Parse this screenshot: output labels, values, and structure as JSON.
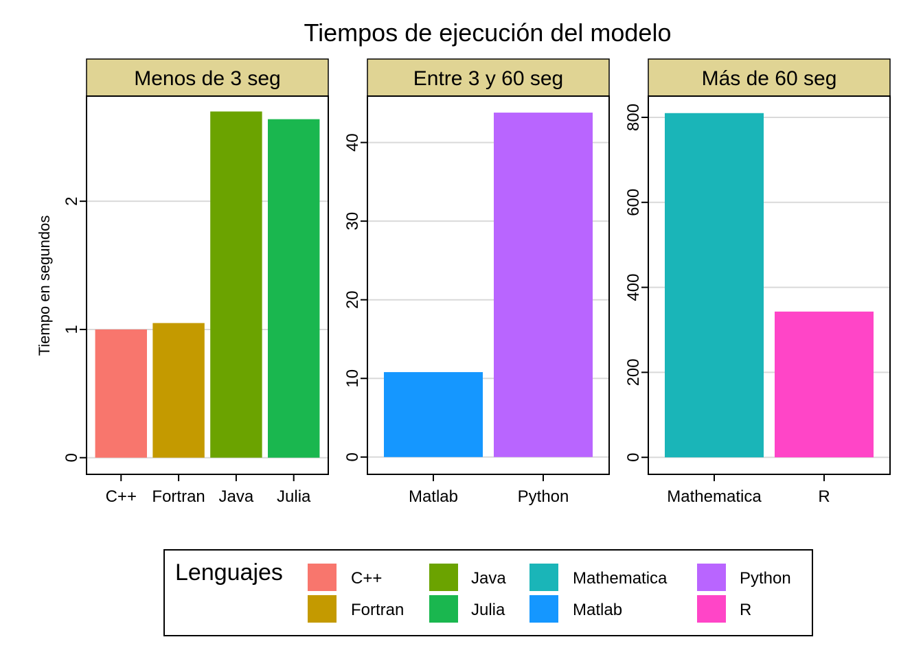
{
  "chart_data": {
    "type": "bar",
    "title": "Tiempos de ejecución del modelo",
    "ylabel": "Tiempo en segundos",
    "xlabel": "",
    "grid": "horizontal major gridlines",
    "panels": [
      {
        "strip": "Menos de 3 seg",
        "categories": [
          "C++",
          "Fortran",
          "Java",
          "Julia"
        ],
        "values": [
          1.0,
          1.05,
          2.7,
          2.64
        ],
        "ylim": [
          -0.13,
          2.82
        ],
        "yticks": [
          0,
          1,
          2
        ],
        "ytick_labels": [
          "0",
          "1",
          "2"
        ]
      },
      {
        "strip": "Entre 3 y 60 seg",
        "categories": [
          "Matlab",
          "Python"
        ],
        "values": [
          10.8,
          43.8
        ],
        "ylim": [
          -2.2,
          45.9
        ],
        "yticks": [
          0,
          10,
          20,
          30,
          40
        ],
        "ytick_labels": [
          "0",
          "10",
          "20",
          "30",
          "40"
        ]
      },
      {
        "strip": "Más de 60 seg",
        "categories": [
          "Mathematica",
          "R"
        ],
        "values": [
          810,
          343
        ],
        "ylim": [
          -40,
          850
        ],
        "yticks": [
          0,
          200,
          400,
          600,
          800
        ],
        "ytick_labels": [
          "0",
          "200",
          "400",
          "600",
          "800"
        ]
      }
    ],
    "legend": {
      "title": "Lenguajes",
      "position": "bottom",
      "entries": [
        "C++",
        "Fortran",
        "Java",
        "Julia",
        "Mathematica",
        "Matlab",
        "Python",
        "R"
      ]
    }
  },
  "colors": {
    "C++": "#F8766D",
    "Fortran": "#C49A00",
    "Java": "#53B400",
    "Julia": "#00C094",
    "Mathematica": "#00B6EB",
    "Matlab": "#A58AFF",
    "Python": "#FB61D7",
    "R": "#FF61C3",
    "strip_fill": "#E0D494",
    "grid": "#D9D9D9",
    "axis": "#000000"
  }
}
